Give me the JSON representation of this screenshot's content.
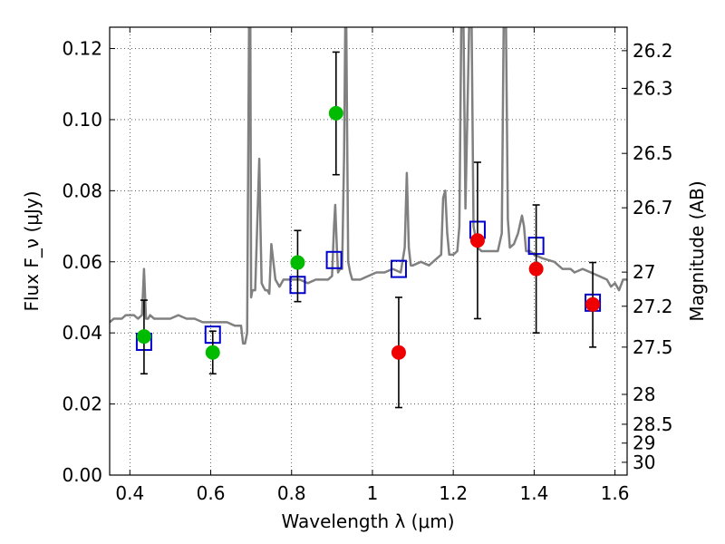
{
  "chart_data": {
    "type": "scatter",
    "xlabel": "Wavelength λ (μm)",
    "ylabel": "Flux F_ν (μJy)",
    "y2label": "Magnitude (AB)",
    "xlim": [
      0.35,
      1.63
    ],
    "ylim": [
      0.0,
      0.126
    ],
    "grid": true,
    "x_ticks": [
      0.4,
      0.6,
      0.8,
      1.0,
      1.2,
      1.4,
      1.6
    ],
    "x_tick_labels": [
      "0.4",
      "0.6",
      "0.8",
      "1",
      "1.2",
      "1.4",
      "1.6"
    ],
    "y_ticks": [
      0.0,
      0.02,
      0.04,
      0.06,
      0.08,
      0.1,
      0.12
    ],
    "y_tick_labels": [
      "0.00",
      "0.02",
      "0.04",
      "0.06",
      "0.08",
      "0.10",
      "0.12"
    ],
    "mag_ticks": [
      {
        "label": "26.2",
        "flux": 0.1194
      },
      {
        "label": "26.3",
        "flux": 0.1088
      },
      {
        "label": "26.5",
        "flux": 0.0905
      },
      {
        "label": "26.7",
        "flux": 0.0752
      },
      {
        "label": "27",
        "flux": 0.0571
      },
      {
        "label": "27.2",
        "flux": 0.0475
      },
      {
        "label": "27.5",
        "flux": 0.036
      },
      {
        "label": "28",
        "flux": 0.0227
      },
      {
        "label": "28.5",
        "flux": 0.0143
      },
      {
        "label": "29",
        "flux": 0.009
      },
      {
        "label": "30",
        "flux": 0.0036
      }
    ],
    "series": [
      {
        "kind": "line",
        "color": "#808080",
        "x": [
          0.35,
          0.36,
          0.37,
          0.38,
          0.39,
          0.4,
          0.41,
          0.42,
          0.43,
          0.435,
          0.44,
          0.445,
          0.45,
          0.46,
          0.48,
          0.5,
          0.52,
          0.54,
          0.56,
          0.58,
          0.6,
          0.62,
          0.64,
          0.66,
          0.675,
          0.68,
          0.685,
          0.69,
          0.695,
          0.698,
          0.7,
          0.703,
          0.71,
          0.715,
          0.72,
          0.723,
          0.726,
          0.73,
          0.735,
          0.74,
          0.745,
          0.75,
          0.76,
          0.77,
          0.78,
          0.8,
          0.82,
          0.84,
          0.86,
          0.88,
          0.89,
          0.9,
          0.905,
          0.908,
          0.912,
          0.915,
          0.92,
          0.925,
          0.93,
          0.933,
          0.935,
          0.94,
          0.945,
          0.95,
          0.97,
          0.99,
          1.01,
          1.03,
          1.05,
          1.07,
          1.08,
          1.085,
          1.09,
          1.095,
          1.1,
          1.12,
          1.14,
          1.16,
          1.17,
          1.175,
          1.18,
          1.185,
          1.19,
          1.2,
          1.21,
          1.215,
          1.22,
          1.225,
          1.23,
          1.24,
          1.245,
          1.25,
          1.26,
          1.27,
          1.29,
          1.3,
          1.31,
          1.32,
          1.325,
          1.33,
          1.335,
          1.34,
          1.35,
          1.36,
          1.37,
          1.375,
          1.38,
          1.39,
          1.4,
          1.42,
          1.45,
          1.47,
          1.49,
          1.5,
          1.52,
          1.54,
          1.56,
          1.58,
          1.59,
          1.6,
          1.61,
          1.62,
          1.63
        ],
        "y": [
          0.043,
          0.044,
          0.044,
          0.044,
          0.045,
          0.045,
          0.045,
          0.044,
          0.045,
          0.058,
          0.044,
          0.044,
          0.045,
          0.044,
          0.044,
          0.044,
          0.045,
          0.044,
          0.044,
          0.043,
          0.043,
          0.043,
          0.043,
          0.042,
          0.042,
          0.037,
          0.037,
          0.04,
          0.13,
          0.13,
          0.05,
          0.052,
          0.052,
          0.07,
          0.089,
          0.07,
          0.054,
          0.053,
          0.052,
          0.052,
          0.051,
          0.065,
          0.055,
          0.053,
          0.055,
          0.055,
          0.055,
          0.054,
          0.055,
          0.055,
          0.055,
          0.056,
          0.07,
          0.076,
          0.064,
          0.057,
          0.058,
          0.058,
          0.09,
          0.13,
          0.13,
          0.06,
          0.057,
          0.055,
          0.055,
          0.056,
          0.057,
          0.057,
          0.058,
          0.057,
          0.064,
          0.085,
          0.064,
          0.059,
          0.059,
          0.06,
          0.059,
          0.061,
          0.062,
          0.078,
          0.08,
          0.068,
          0.062,
          0.062,
          0.063,
          0.07,
          0.13,
          0.13,
          0.075,
          0.13,
          0.13,
          0.07,
          0.064,
          0.063,
          0.063,
          0.063,
          0.063,
          0.068,
          0.13,
          0.13,
          0.072,
          0.064,
          0.065,
          0.068,
          0.073,
          0.07,
          0.063,
          0.063,
          0.062,
          0.061,
          0.06,
          0.058,
          0.058,
          0.057,
          0.058,
          0.057,
          0.056,
          0.055,
          0.053,
          0.054,
          0.052,
          0.055,
          0.055
        ]
      },
      {
        "kind": "squares",
        "color": "#0000cc",
        "x": [
          0.435,
          0.605,
          0.815,
          0.905,
          1.065,
          1.26,
          1.405,
          1.545
        ],
        "y": [
          0.0375,
          0.0395,
          0.0535,
          0.0605,
          0.058,
          0.069,
          0.0645,
          0.0485
        ]
      },
      {
        "kind": "points",
        "color": "#00bb00",
        "x": [
          0.435,
          0.605,
          0.815,
          0.91
        ],
        "y": [
          0.039,
          0.0345,
          0.0598,
          0.1018
        ],
        "yerr_low": [
          0.0285,
          0.0285,
          0.0488,
          0.0845
        ],
        "yerr_high": [
          0.0492,
          0.0405,
          0.0688,
          0.119
        ]
      },
      {
        "kind": "points",
        "color": "#ee0000",
        "x": [
          1.065,
          1.26,
          1.405,
          1.545
        ],
        "y": [
          0.0345,
          0.066,
          0.058,
          0.048
        ],
        "yerr_low": [
          0.019,
          0.044,
          0.04,
          0.036
        ],
        "yerr_high": [
          0.05,
          0.088,
          0.076,
          0.0598
        ]
      }
    ]
  }
}
